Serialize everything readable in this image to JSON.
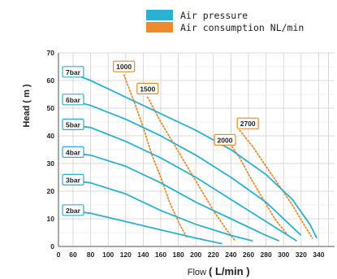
{
  "legend": [
    {
      "label": "Air pressure",
      "color": "#2bb0d0"
    },
    {
      "label": "Air consumption NL/min",
      "color": "#ee8a2a"
    }
  ],
  "chart_data": {
    "type": "line",
    "xlabel_main": "Flow",
    "xlabel_unit": "( L/min )",
    "ylabel": "Head ( m )",
    "xlim": [
      0,
      340
    ],
    "ylim": [
      0,
      70
    ],
    "x_ticks": [
      "0",
      "60",
      "80",
      "100",
      "120",
      "140",
      "160",
      "180",
      "200",
      "220",
      "240",
      "260",
      "280",
      "300",
      "320",
      "340"
    ],
    "y_ticks": [
      "0",
      "10",
      "20",
      "30",
      "40",
      "50",
      "60",
      "70"
    ],
    "grid": true,
    "series": [
      {
        "name": "7bar",
        "points": [
          [
            42,
            63
          ],
          [
            80,
            60
          ],
          [
            120,
            54
          ],
          [
            160,
            48
          ],
          [
            200,
            42
          ],
          [
            240,
            35
          ],
          [
            280,
            26
          ],
          [
            310,
            17
          ],
          [
            330,
            8
          ],
          [
            338,
            3
          ]
        ]
      },
      {
        "name": "6bar",
        "points": [
          [
            42,
            53
          ],
          [
            80,
            51
          ],
          [
            120,
            46
          ],
          [
            160,
            40
          ],
          [
            200,
            33
          ],
          [
            240,
            25
          ],
          [
            280,
            16
          ],
          [
            310,
            7
          ],
          [
            320,
            4
          ]
        ]
      },
      {
        "name": "5bar",
        "points": [
          [
            42,
            44
          ],
          [
            80,
            43
          ],
          [
            120,
            38
          ],
          [
            160,
            32
          ],
          [
            200,
            25
          ],
          [
            240,
            17
          ],
          [
            280,
            9
          ],
          [
            310,
            3
          ],
          [
            315,
            2
          ]
        ]
      },
      {
        "name": "4bar",
        "points": [
          [
            42,
            34
          ],
          [
            80,
            33
          ],
          [
            120,
            29
          ],
          [
            160,
            23
          ],
          [
            200,
            16
          ],
          [
            240,
            10
          ],
          [
            280,
            4
          ],
          [
            295,
            2
          ]
        ]
      },
      {
        "name": "3bar",
        "points": [
          [
            42,
            24
          ],
          [
            80,
            23
          ],
          [
            120,
            19
          ],
          [
            160,
            13
          ],
          [
            200,
            8
          ],
          [
            240,
            4
          ],
          [
            265,
            2
          ]
        ]
      },
      {
        "name": "2bar",
        "points": [
          [
            42,
            13
          ],
          [
            80,
            12
          ],
          [
            120,
            9
          ],
          [
            160,
            6
          ],
          [
            200,
            3
          ],
          [
            230,
            1
          ]
        ]
      }
    ],
    "consumption": [
      {
        "label": "1000",
        "points": [
          [
            118,
            62
          ],
          [
            130,
            52
          ],
          [
            140,
            43
          ],
          [
            150,
            33
          ],
          [
            160,
            25
          ],
          [
            170,
            16
          ],
          [
            180,
            9
          ],
          [
            190,
            3
          ]
        ]
      },
      {
        "label": "1500",
        "points": [
          [
            145,
            54
          ],
          [
            160,
            45
          ],
          [
            175,
            37
          ],
          [
            190,
            29
          ],
          [
            205,
            21
          ],
          [
            220,
            13
          ],
          [
            235,
            6
          ],
          [
            245,
            2
          ]
        ]
      },
      {
        "label": "2000",
        "points": [
          [
            235,
            39
          ],
          [
            250,
            32
          ],
          [
            262,
            25
          ],
          [
            275,
            18
          ],
          [
            290,
            10
          ],
          [
            305,
            4
          ]
        ]
      },
      {
        "label": "2700",
        "points": [
          [
            250,
            42
          ],
          [
            265,
            36
          ],
          [
            280,
            29
          ],
          [
            295,
            22
          ],
          [
            310,
            15
          ],
          [
            325,
            7
          ],
          [
            333,
            3
          ]
        ]
      }
    ]
  }
}
